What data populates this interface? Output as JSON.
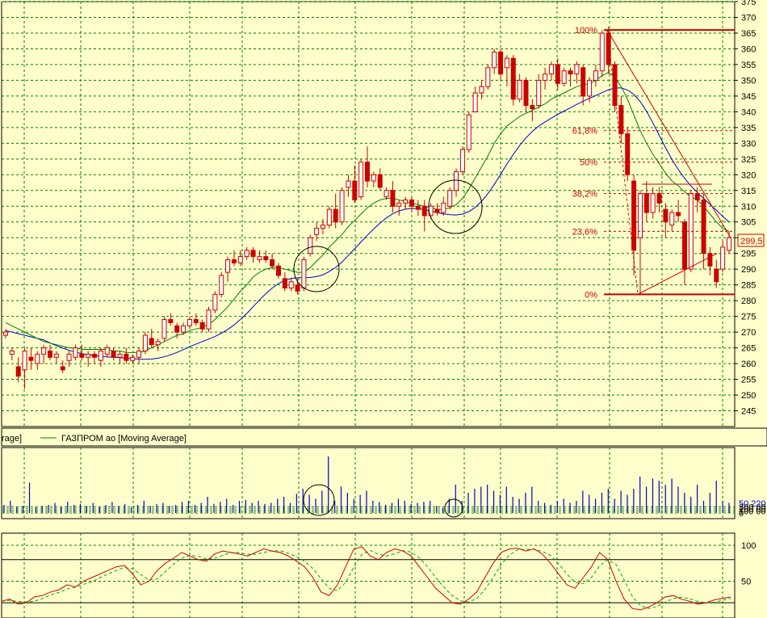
{
  "chart_data": [
    {
      "type": "candlestick",
      "panel": "price",
      "ylim": [
        240,
        375
      ],
      "y_ticks": [
        "245",
        "250",
        "255",
        "260",
        "265",
        "270",
        "275",
        "280",
        "285",
        "290",
        "295",
        "300",
        "305",
        "310",
        "315",
        "320",
        "325",
        "330",
        "335",
        "340",
        "345",
        "350",
        "355",
        "360",
        "365",
        "370",
        "375"
      ],
      "grid": true,
      "last_price_label": "299,5",
      "legend": [
        {
          "label": "rage]",
          "color": "#0000cc"
        },
        {
          "label": "ГАЗПРОМ ао [Moving Average]",
          "color": "#008000"
        }
      ],
      "fibonacci": [
        {
          "label": "100%",
          "value": 366
        },
        {
          "label": "61,8%",
          "value": 334
        },
        {
          "label": "50%",
          "value": 324
        },
        {
          "label": "38,2%",
          "value": 314
        },
        {
          "label": "23,6%",
          "value": 302
        },
        {
          "label": "0%",
          "value": 282
        }
      ],
      "candles": [
        [
          269,
          271,
          268,
          270
        ],
        [
          263,
          265,
          261,
          264
        ],
        [
          259,
          262,
          254,
          256
        ],
        [
          258,
          265,
          252,
          264
        ],
        [
          262,
          265,
          258,
          261
        ],
        [
          260,
          264,
          258,
          263
        ],
        [
          263,
          266,
          260,
          265
        ],
        [
          264,
          266,
          261,
          262
        ],
        [
          262,
          264,
          260,
          263
        ],
        [
          259,
          261,
          257,
          258
        ],
        [
          261,
          264,
          259,
          263
        ],
        [
          262,
          266,
          261,
          265
        ],
        [
          263,
          266,
          261,
          262
        ],
        [
          262,
          264,
          259,
          263
        ],
        [
          263,
          264,
          260,
          262
        ],
        [
          261,
          265,
          259,
          264
        ],
        [
          263,
          266,
          262,
          265
        ],
        [
          264,
          265,
          261,
          262
        ],
        [
          262,
          264,
          260,
          263
        ],
        [
          263,
          265,
          260,
          261
        ],
        [
          261,
          263,
          260,
          262
        ],
        [
          262,
          265,
          260,
          264
        ],
        [
          264,
          270,
          263,
          269
        ],
        [
          268,
          271,
          265,
          266
        ],
        [
          266,
          268,
          264,
          267
        ],
        [
          268,
          275,
          267,
          274
        ],
        [
          274,
          276,
          272,
          273
        ],
        [
          272,
          273,
          268,
          270
        ],
        [
          270,
          273,
          269,
          272
        ],
        [
          272,
          275,
          271,
          274
        ],
        [
          274,
          276,
          272,
          273
        ],
        [
          273,
          274,
          270,
          271
        ],
        [
          271,
          278,
          270,
          277
        ],
        [
          277,
          283,
          276,
          282
        ],
        [
          282,
          289,
          281,
          288
        ],
        [
          289,
          294,
          286,
          293
        ],
        [
          293,
          296,
          291,
          292
        ],
        [
          292,
          296,
          291,
          294
        ],
        [
          294,
          297,
          293,
          296
        ],
        [
          296,
          297,
          292,
          294
        ],
        [
          293,
          296,
          292,
          294
        ],
        [
          294,
          296,
          292,
          293
        ],
        [
          293,
          295,
          290,
          291
        ],
        [
          291,
          292,
          287,
          288
        ],
        [
          287,
          289,
          283,
          284
        ],
        [
          284,
          287,
          283,
          286
        ],
        [
          285,
          287,
          282,
          283
        ],
        [
          284,
          294,
          283,
          293
        ],
        [
          295,
          301,
          294,
          300
        ],
        [
          301,
          305,
          299,
          303
        ],
        [
          303,
          306,
          301,
          304
        ],
        [
          304,
          310,
          303,
          309
        ],
        [
          309,
          314,
          303,
          305
        ],
        [
          305,
          316,
          304,
          315
        ],
        [
          316,
          320,
          313,
          318
        ],
        [
          318,
          323,
          311,
          312
        ],
        [
          313,
          325,
          312,
          324
        ],
        [
          324,
          329,
          316,
          318
        ],
        [
          318,
          321,
          316,
          320
        ],
        [
          320,
          322,
          315,
          316
        ],
        [
          313,
          316,
          312,
          315
        ],
        [
          315,
          318,
          308,
          310
        ],
        [
          310,
          312,
          307,
          311
        ],
        [
          311,
          313,
          309,
          312
        ],
        [
          312,
          313,
          308,
          310
        ],
        [
          310,
          312,
          307,
          309
        ],
        [
          310,
          312,
          302,
          307
        ],
        [
          307,
          311,
          306,
          310
        ],
        [
          309,
          311,
          307,
          308
        ],
        [
          308,
          313,
          307,
          311
        ],
        [
          310,
          316,
          309,
          315
        ],
        [
          315,
          322,
          313,
          321
        ],
        [
          321,
          329,
          320,
          328
        ],
        [
          328,
          340,
          327,
          339
        ],
        [
          340,
          348,
          340,
          346
        ],
        [
          346,
          350,
          344,
          348
        ],
        [
          348,
          355,
          347,
          354
        ],
        [
          354,
          360,
          352,
          359
        ],
        [
          359,
          360,
          350,
          352
        ],
        [
          354,
          358,
          348,
          357
        ],
        [
          357,
          358,
          342,
          344
        ],
        [
          344,
          352,
          343,
          350
        ],
        [
          350,
          351,
          340,
          342
        ],
        [
          342,
          344,
          337,
          341
        ],
        [
          342,
          352,
          341,
          350
        ],
        [
          350,
          354,
          347,
          352
        ],
        [
          352,
          356,
          350,
          355
        ],
        [
          355,
          357,
          347,
          349
        ],
        [
          349,
          354,
          348,
          353
        ],
        [
          353,
          354,
          348,
          352
        ],
        [
          352,
          356,
          349,
          355
        ],
        [
          354,
          355,
          342,
          345
        ],
        [
          345,
          351,
          343,
          350
        ],
        [
          350,
          355,
          348,
          353
        ],
        [
          353,
          366,
          351,
          365
        ],
        [
          365,
          367,
          352,
          355
        ],
        [
          355,
          356,
          340,
          342
        ],
        [
          342,
          345,
          330,
          333
        ],
        [
          333,
          335,
          318,
          320
        ],
        [
          318,
          320,
          288,
          296
        ],
        [
          300,
          315,
          282,
          314
        ],
        [
          314,
          318,
          305,
          308
        ],
        [
          308,
          316,
          306,
          314
        ],
        [
          314,
          316,
          308,
          311
        ],
        [
          309,
          311,
          300,
          305
        ],
        [
          304,
          309,
          302,
          308
        ],
        [
          308,
          312,
          305,
          307
        ],
        [
          305,
          306,
          285,
          290
        ],
        [
          290,
          315,
          289,
          314
        ],
        [
          314,
          316,
          308,
          312
        ],
        [
          312,
          314,
          290,
          295
        ],
        [
          295,
          297,
          288,
          291
        ],
        [
          290,
          293,
          284,
          286
        ],
        [
          290,
          299,
          289,
          297
        ],
        [
          296,
          302,
          295,
          300
        ]
      ],
      "ma_short": [
        273,
        272,
        271,
        270,
        269,
        268,
        267,
        266.5,
        266,
        265.5,
        265,
        265,
        264.5,
        264.5,
        264.5,
        264.5,
        264.5,
        264,
        264,
        263.5,
        263.5,
        263.5,
        264,
        265,
        266,
        267,
        268,
        269,
        269.5,
        270.5,
        271,
        271.5,
        272.5,
        274,
        276,
        278,
        280.5,
        283,
        285,
        287.5,
        289,
        290,
        290.5,
        290.5,
        290,
        289.5,
        289,
        289,
        290.5,
        292.5,
        294.5,
        297,
        299,
        301,
        303.5,
        305.5,
        307.5,
        309.5,
        311,
        312,
        312.5,
        312.5,
        312,
        311.5,
        311,
        310.5,
        310,
        309.5,
        309,
        309,
        309.5,
        310.5,
        312.5,
        315.5,
        319,
        322.5,
        326,
        330,
        333,
        335.5,
        337,
        338.5,
        339.5,
        340.5,
        341.5,
        342.5,
        344,
        345,
        346,
        347,
        348,
        348.5,
        349,
        350,
        351.5,
        352.5,
        351,
        348,
        344,
        339,
        334,
        330,
        326.5,
        323.5,
        320.5,
        318,
        316.5,
        314.5,
        313,
        312,
        310,
        307.5,
        305,
        303,
        302
      ]
    },
    {
      "type": "bar",
      "panel": "volume",
      "ylim": [
        0,
        300
      ],
      "y_ticks": [
        "0",
        "100 00",
        "200 00",
        "300 00"
      ],
      "last_value_label": "50 220",
      "values": [
        40,
        60,
        30,
        35,
        150,
        30,
        35,
        40,
        50,
        30,
        55,
        40,
        45,
        35,
        50,
        30,
        40,
        55,
        35,
        45,
        30,
        40,
        60,
        35,
        45,
        50,
        35,
        40,
        55,
        60,
        40,
        50,
        80,
        45,
        55,
        70,
        40,
        60,
        65,
        50,
        60,
        45,
        50,
        70,
        80,
        50,
        95,
        120,
        90,
        70,
        110,
        280,
        60,
        130,
        100,
        70,
        90,
        110,
        60,
        55,
        40,
        50,
        70,
        60,
        45,
        50,
        55,
        60,
        35,
        25,
        70,
        140,
        60,
        100,
        120,
        130,
        140,
        110,
        90,
        130,
        80,
        70,
        100,
        130,
        60,
        50,
        40,
        60,
        70,
        50,
        60,
        110,
        90,
        70,
        100,
        120,
        70,
        110,
        90,
        120,
        180,
        130,
        170,
        160,
        140,
        170,
        130,
        100,
        80,
        140,
        60,
        100,
        160,
        60,
        50
      ]
    },
    {
      "type": "line",
      "panel": "oscillator",
      "ylim": [
        10,
        105
      ],
      "y_ticks": [
        "50",
        "100"
      ],
      "levels": [
        80,
        20
      ],
      "series_k": [
        22,
        25,
        18,
        20,
        28,
        30,
        35,
        38,
        45,
        42,
        50,
        55,
        60,
        65,
        70,
        72,
        60,
        45,
        50,
        65,
        75,
        82,
        90,
        85,
        80,
        78,
        88,
        92,
        90,
        88,
        85,
        90,
        95,
        92,
        90,
        85,
        78,
        70,
        55,
        35,
        30,
        45,
        70,
        95,
        98,
        85,
        80,
        90,
        95,
        92,
        85,
        70,
        55,
        40,
        30,
        20,
        18,
        25,
        35,
        55,
        75,
        90,
        95,
        96,
        92,
        95,
        88,
        75,
        60,
        45,
        40,
        55,
        70,
        90,
        80,
        50,
        25,
        12,
        10,
        14,
        20,
        28,
        30,
        25,
        22,
        18,
        20,
        24,
        26,
        28
      ]
    }
  ]
}
